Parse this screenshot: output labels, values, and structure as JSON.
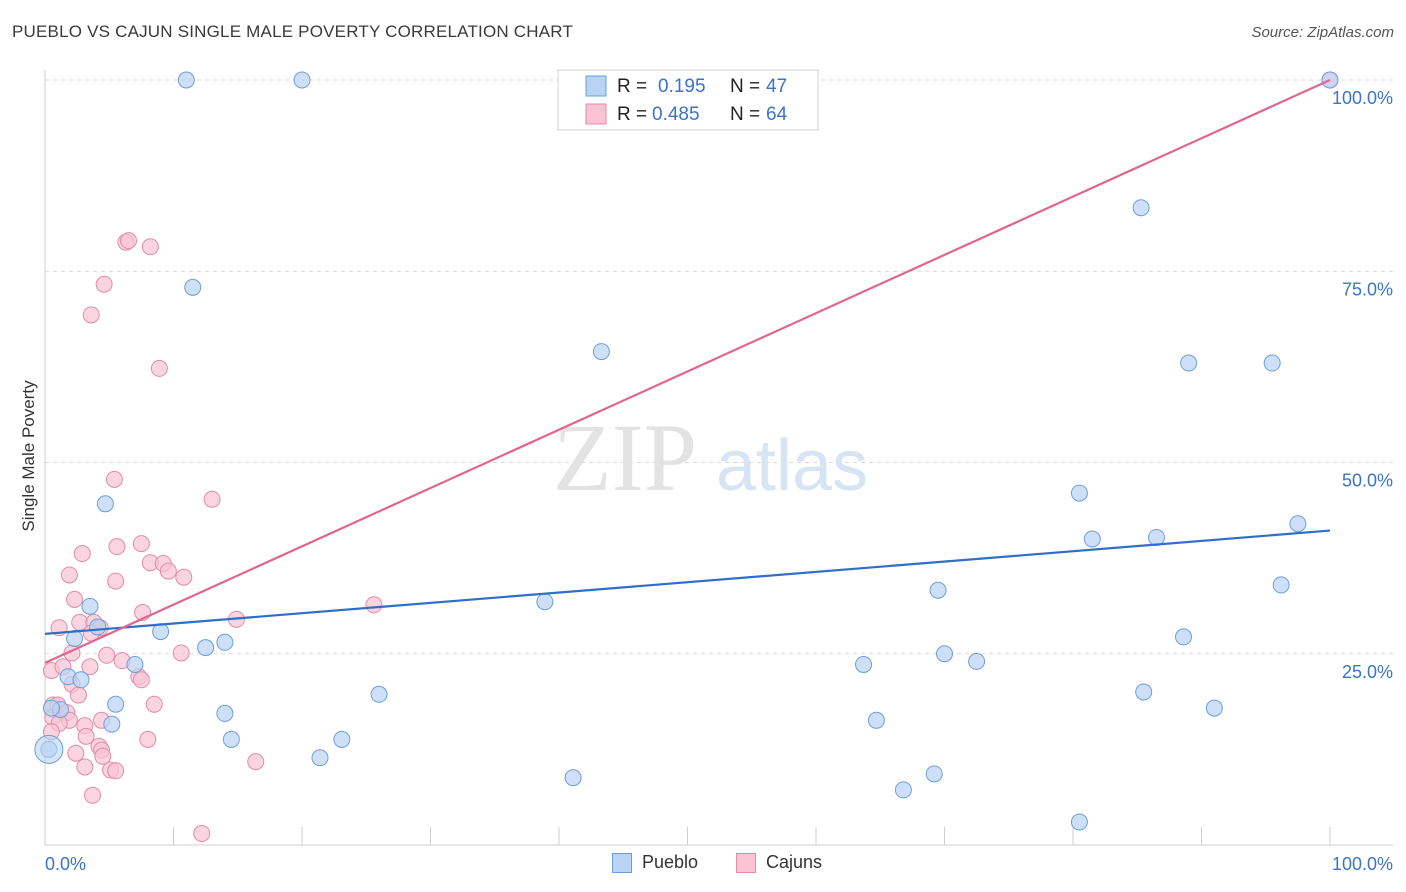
{
  "header": {
    "title": "PUEBLO VS CAJUN SINGLE MALE POVERTY CORRELATION CHART",
    "source": "Source: ZipAtlas.com"
  },
  "watermark": {
    "zip": "ZIP",
    "atlas": "atlas"
  },
  "colors": {
    "pueblo_fill": "#b8d3f3",
    "pueblo_stroke": "#6c9fd9",
    "pueblo_line": "#2f6fc9",
    "cajun_fill": "#f8c3d3",
    "cajun_stroke": "#e58aa8",
    "cajun_line": "#e0668f",
    "tick_label": "#3b74c4",
    "grid": "#d9d9d9"
  },
  "legend_top": {
    "rows": [
      {
        "r_label": "R =",
        "r_value": "0.195",
        "n_label": "N =",
        "n_value": "47"
      },
      {
        "r_label": "R =",
        "r_value": "0.485",
        "n_label": "N =",
        "n_value": "64"
      }
    ]
  },
  "legend_bottom": {
    "pueblo": "Pueblo",
    "cajuns": "Cajuns"
  },
  "chart_data": {
    "type": "scatter",
    "title": "PUEBLO VS CAJUN SINGLE MALE POVERTY CORRELATION CHART",
    "xlabel": "",
    "ylabel": "Single Male Poverty",
    "xlim": [
      0,
      100
    ],
    "ylim": [
      0,
      100
    ],
    "x_tick_labels": [
      "0.0%",
      "100.0%"
    ],
    "y_ticks": [
      25,
      50,
      75,
      100
    ],
    "y_tick_labels": [
      "25.0%",
      "50.0%",
      "75.0%",
      "100.0%"
    ],
    "grid": true,
    "legend_position": "top-center",
    "series": [
      {
        "name": "Pueblo",
        "r": 0.195,
        "n": 47,
        "trend": [
          [
            0,
            27.6
          ],
          [
            100,
            41.1
          ]
        ],
        "points": [
          [
            11,
            100
          ],
          [
            20,
            100
          ],
          [
            100,
            100
          ],
          [
            85.3,
            83.3
          ],
          [
            11.5,
            72.9
          ],
          [
            43.3,
            64.5
          ],
          [
            89,
            63
          ],
          [
            95.5,
            63
          ],
          [
            80.5,
            46
          ],
          [
            97.5,
            42
          ],
          [
            81.5,
            40
          ],
          [
            86.5,
            40.2
          ],
          [
            4.7,
            44.6
          ],
          [
            96.2,
            34
          ],
          [
            69.5,
            33.3
          ],
          [
            3.5,
            31.2
          ],
          [
            38.9,
            31.8
          ],
          [
            4.1,
            28.5
          ],
          [
            9,
            27.9
          ],
          [
            2.3,
            27
          ],
          [
            14,
            26.5
          ],
          [
            12.5,
            25.8
          ],
          [
            88.6,
            27.2
          ],
          [
            70,
            25
          ],
          [
            72.5,
            24
          ],
          [
            7,
            23.6
          ],
          [
            63.7,
            23.6
          ],
          [
            1.8,
            22
          ],
          [
            2.8,
            21.6
          ],
          [
            26,
            19.7
          ],
          [
            85.5,
            20
          ],
          [
            5.5,
            18.4
          ],
          [
            91,
            17.9
          ],
          [
            1.2,
            17.7
          ],
          [
            0.5,
            17.9
          ],
          [
            14,
            17.2
          ],
          [
            64.7,
            16.3
          ],
          [
            5.2,
            15.8
          ],
          [
            14.5,
            13.8
          ],
          [
            23.1,
            13.8
          ],
          [
            0.3,
            12.5
          ],
          [
            21.4,
            11.4
          ],
          [
            69.2,
            9.3
          ],
          [
            41.1,
            8.8
          ],
          [
            66.8,
            7.2
          ],
          [
            80.5,
            3
          ]
        ]
      },
      {
        "name": "Cajuns",
        "r": 0.485,
        "n": 64,
        "trend": [
          [
            0,
            23.8
          ],
          [
            100,
            100
          ]
        ],
        "points": [
          [
            100,
            100
          ],
          [
            6.3,
            78.8
          ],
          [
            6.5,
            79
          ],
          [
            8.2,
            78.2
          ],
          [
            4.6,
            73.3
          ],
          [
            3.6,
            69.3
          ],
          [
            8.9,
            62.3
          ],
          [
            5.4,
            47.8
          ],
          [
            13,
            45.2
          ],
          [
            7.5,
            39.4
          ],
          [
            5.6,
            39
          ],
          [
            2.9,
            38.1
          ],
          [
            8.2,
            36.9
          ],
          [
            9.2,
            36.8
          ],
          [
            9.6,
            35.8
          ],
          [
            10.8,
            35
          ],
          [
            1.9,
            35.3
          ],
          [
            5.5,
            34.5
          ],
          [
            2.3,
            32.1
          ],
          [
            25.6,
            31.4
          ],
          [
            7.6,
            30.4
          ],
          [
            14.9,
            29.5
          ],
          [
            2.7,
            29.1
          ],
          [
            3.8,
            29.1
          ],
          [
            4.3,
            28.4
          ],
          [
            1.1,
            28.4
          ],
          [
            3.6,
            27.7
          ],
          [
            10.6,
            25.1
          ],
          [
            2.1,
            25.1
          ],
          [
            4.8,
            24.8
          ],
          [
            6,
            24.1
          ],
          [
            0.5,
            22.8
          ],
          [
            3.5,
            23.3
          ],
          [
            1.4,
            23.3
          ],
          [
            7.3,
            22
          ],
          [
            7.5,
            21.6
          ],
          [
            2.1,
            21
          ],
          [
            2.6,
            19.6
          ],
          [
            8.5,
            18.4
          ],
          [
            0.6,
            18.3
          ],
          [
            1,
            18.3
          ],
          [
            1.7,
            17.3
          ],
          [
            0.6,
            16.7
          ],
          [
            1.9,
            16.3
          ],
          [
            4.4,
            16.3
          ],
          [
            1.1,
            15.9
          ],
          [
            3.1,
            15.6
          ],
          [
            0.5,
            14.8
          ],
          [
            3.2,
            14.2
          ],
          [
            8,
            13.8
          ],
          [
            4.2,
            12.9
          ],
          [
            4.4,
            12.4
          ],
          [
            2.4,
            12
          ],
          [
            16.4,
            10.9
          ],
          [
            4.5,
            11.6
          ],
          [
            3.1,
            10.2
          ],
          [
            5.1,
            9.8
          ],
          [
            5.5,
            9.7
          ],
          [
            3.7,
            6.5
          ],
          [
            12.2,
            1.5
          ]
        ]
      }
    ]
  }
}
